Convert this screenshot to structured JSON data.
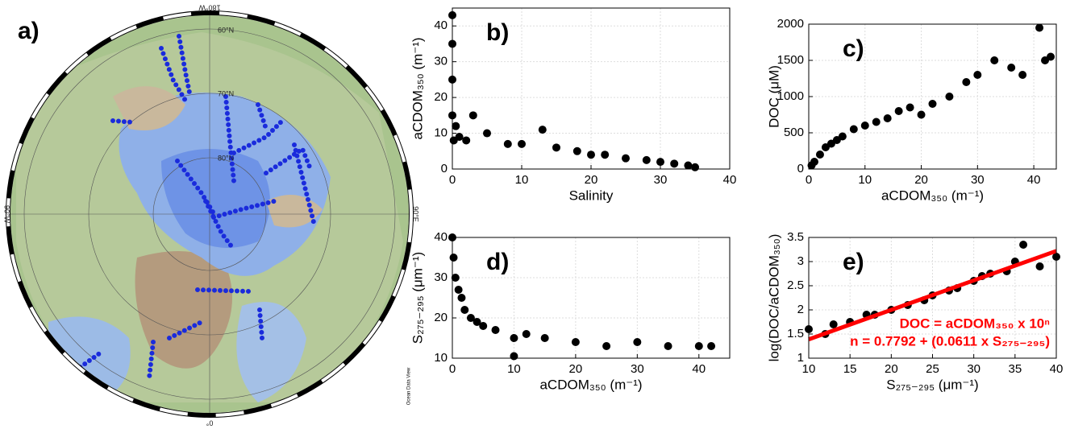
{
  "map": {
    "label": "a)",
    "top_label": "180°W",
    "left_label": "90°W",
    "right_label": "90°E",
    "bottom_label": "0°",
    "lat_labels": [
      "60°N",
      "70°N",
      "80°N"
    ],
    "credit": "Ocean Data View"
  },
  "chart_data": [
    {
      "type": "scatter",
      "panel_label": "b)",
      "xlabel": "Salinity",
      "ylabel": "aCDOM₃₅₀ (m⁻¹)",
      "color": "#000000",
      "grid": true,
      "xlim": [
        0,
        40
      ],
      "ylim": [
        0,
        45
      ],
      "xticks": [
        0,
        10,
        20,
        30,
        40
      ],
      "yticks": [
        0,
        10,
        20,
        30,
        40
      ],
      "x": [
        0,
        0,
        0,
        0,
        0.2,
        0.5,
        1,
        2,
        3,
        5,
        8,
        10,
        13,
        15,
        18,
        20,
        22,
        25,
        28,
        30,
        32,
        34,
        35
      ],
      "values": [
        43,
        35,
        25,
        15,
        8,
        12,
        9,
        8,
        15,
        10,
        7,
        7,
        11,
        6,
        5,
        4,
        4,
        3,
        2.5,
        2,
        1.5,
        1,
        0.5
      ]
    },
    {
      "type": "scatter",
      "panel_label": "c)",
      "xlabel": "aCDOM₃₅₀ (m⁻¹)",
      "ylabel": "DOC (μM)",
      "color": "#000000",
      "grid": true,
      "xlim": [
        0,
        44
      ],
      "ylim": [
        0,
        2000
      ],
      "xticks": [
        0,
        10,
        20,
        30,
        40
      ],
      "yticks": [
        0,
        500,
        1000,
        1500,
        2000
      ],
      "x": [
        0.5,
        1,
        2,
        3,
        4,
        5,
        6,
        8,
        10,
        12,
        14,
        16,
        18,
        20,
        22,
        25,
        28,
        30,
        33,
        36,
        38,
        41,
        42,
        43
      ],
      "values": [
        50,
        100,
        200,
        300,
        350,
        400,
        450,
        550,
        600,
        650,
        700,
        800,
        850,
        750,
        900,
        1000,
        1200,
        1300,
        1500,
        1400,
        1300,
        1950,
        1500,
        1550
      ]
    },
    {
      "type": "scatter",
      "panel_label": "d)",
      "xlabel": "aCDOM₃₅₀ (m⁻¹)",
      "ylabel": "S₂₇₅₋₂₉₅ (μm⁻¹)",
      "color": "#000000",
      "grid": true,
      "xlim": [
        0,
        45
      ],
      "ylim": [
        10,
        40
      ],
      "xticks": [
        0,
        10,
        20,
        30,
        40
      ],
      "yticks": [
        10,
        20,
        30,
        40
      ],
      "x": [
        0,
        0.2,
        0.5,
        1,
        1.5,
        2,
        3,
        4,
        5,
        7,
        10,
        10,
        12,
        15,
        20,
        25,
        30,
        35,
        40,
        42
      ],
      "values": [
        40,
        35,
        30,
        27,
        25,
        22,
        20,
        19,
        18,
        17,
        15,
        10.5,
        16,
        15,
        14,
        13,
        14,
        13,
        13,
        13
      ]
    },
    {
      "type": "scatter",
      "panel_label": "e)",
      "xlabel": "S₂₇₅₋₂₉₅ (μm⁻¹)",
      "ylabel": "log(DOC/aCDOM₃₅₀)",
      "color": "#000000",
      "grid": true,
      "xlim": [
        10,
        40
      ],
      "ylim": [
        1,
        3.5
      ],
      "xticks": [
        10,
        15,
        20,
        25,
        30,
        35,
        40
      ],
      "yticks": [
        1,
        1.5,
        2,
        2.5,
        3,
        3.5
      ],
      "x": [
        10,
        12,
        13,
        15,
        17,
        18,
        20,
        22,
        24,
        25,
        27,
        28,
        30,
        31,
        32,
        34,
        35,
        36,
        38,
        40
      ],
      "values": [
        1.6,
        1.5,
        1.7,
        1.75,
        1.9,
        1.9,
        2.0,
        2.1,
        2.2,
        2.3,
        2.4,
        2.45,
        2.6,
        2.7,
        2.75,
        2.8,
        3.0,
        3.35,
        2.9,
        3.1
      ],
      "fit": {
        "x": [
          10,
          40
        ],
        "values": [
          1.39,
          3.22
        ],
        "color": "#ff0000"
      },
      "annotations": [
        "DOC = aCDOM₃₅₀ x 10ⁿ",
        "n = 0.7792 + (0.0611 x S₂₇₅₋₂₉₅)"
      ]
    }
  ]
}
